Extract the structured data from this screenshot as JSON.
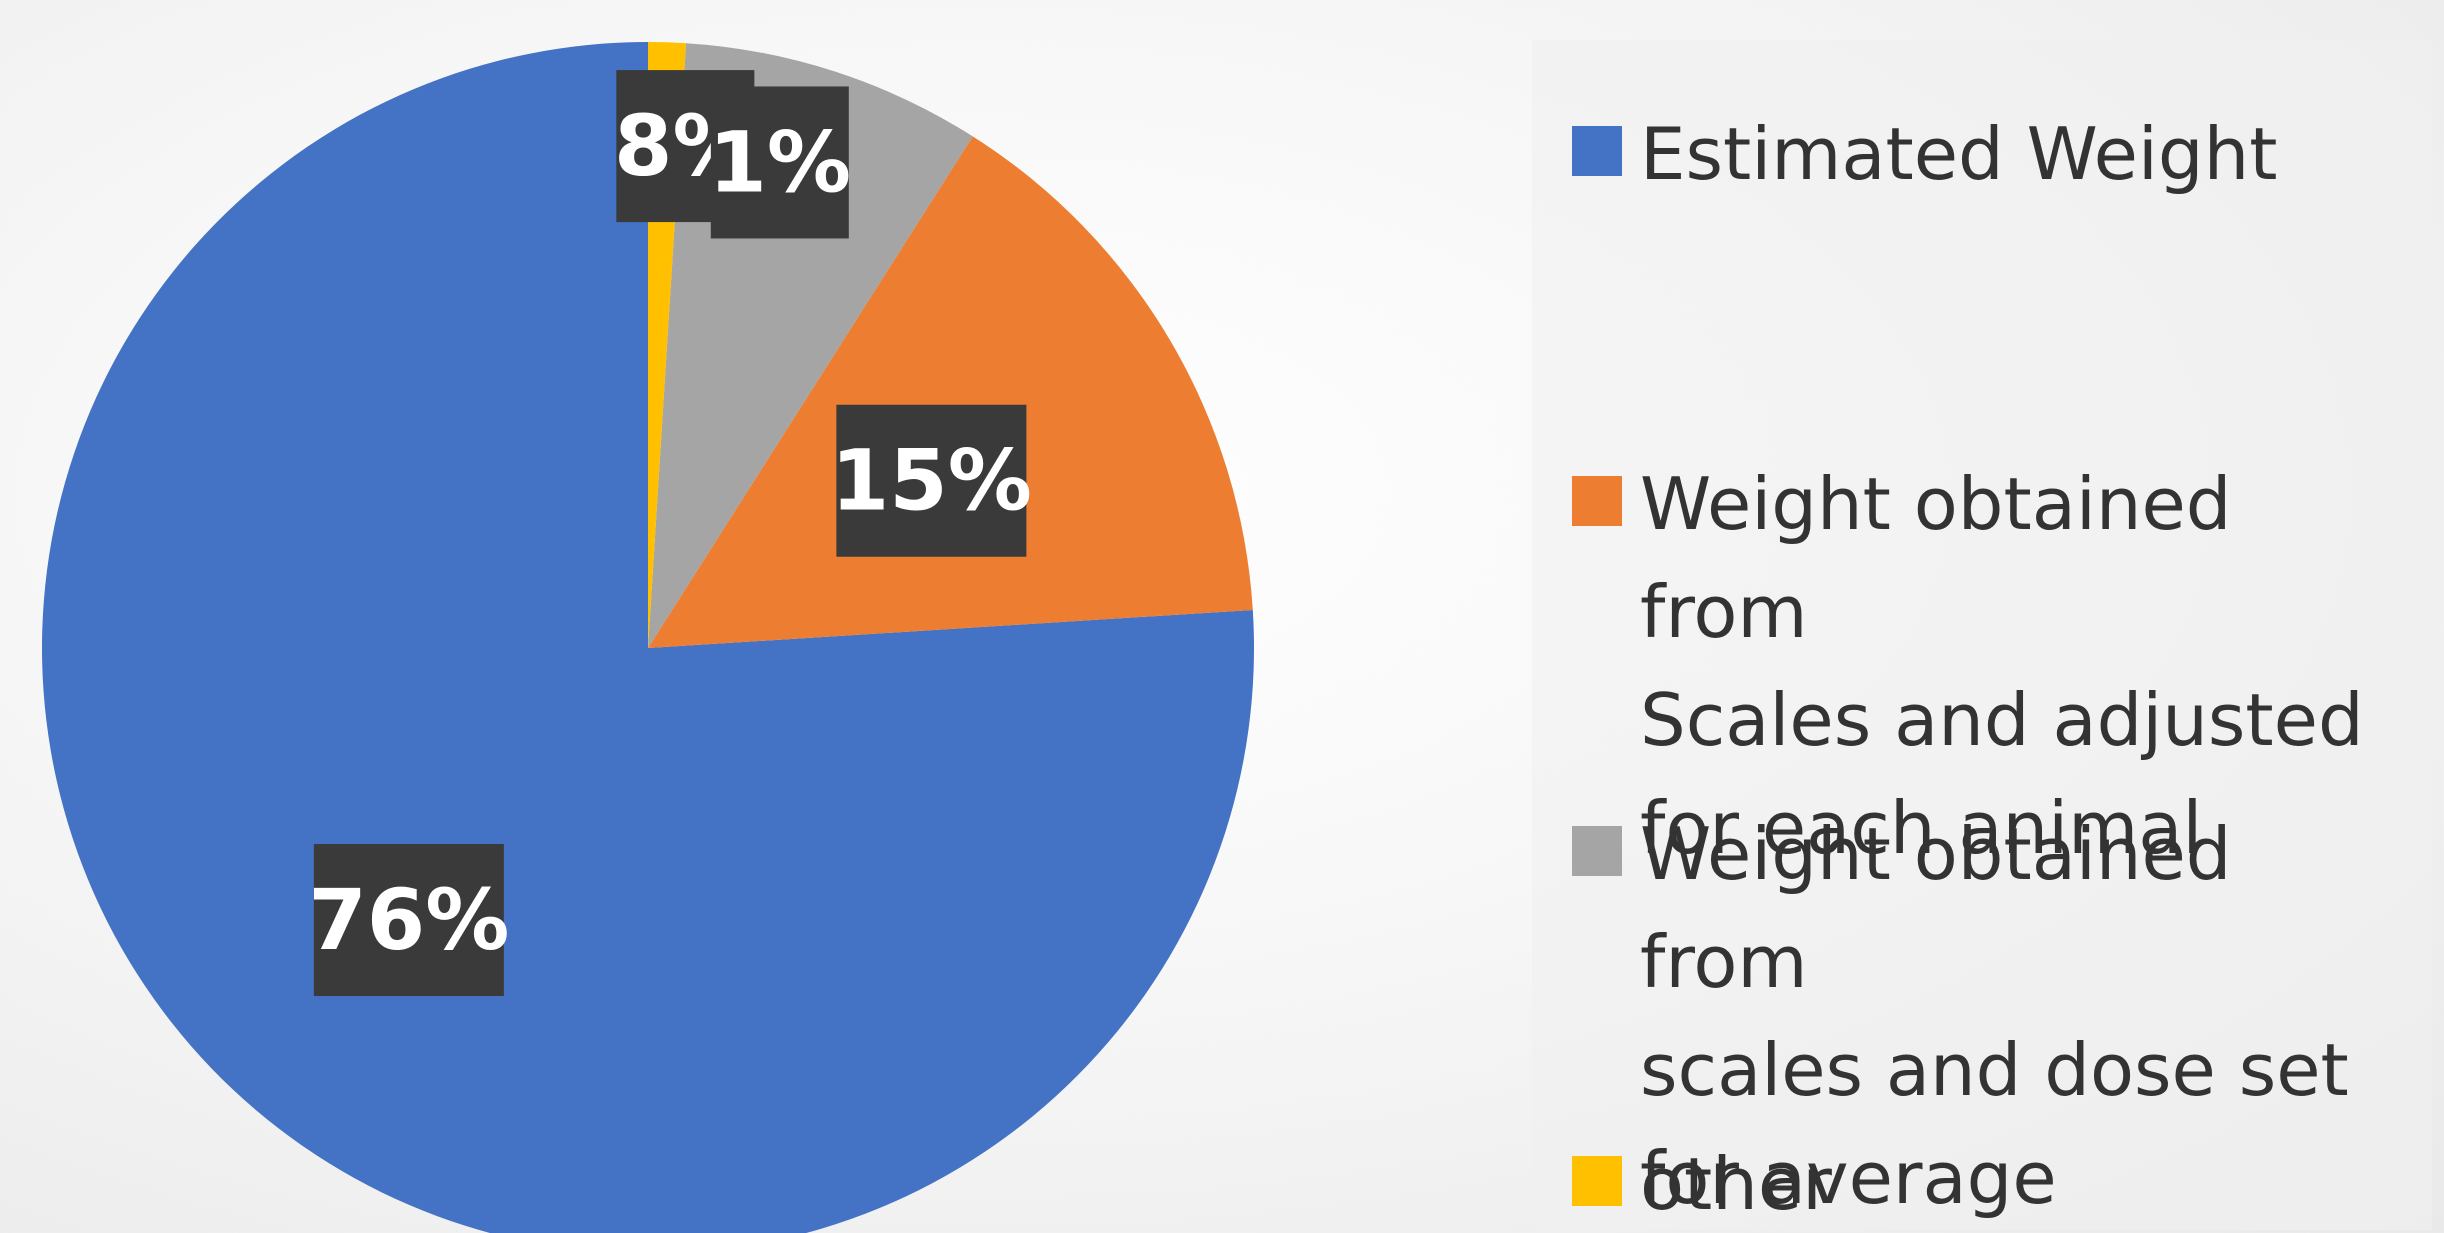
{
  "chart_data": {
    "type": "pie",
    "categories": [
      "Estimated Weight",
      "Weight obtained from Scales and adjusted for each animal",
      "Weight obtained from scales and dose set for average",
      "other"
    ],
    "values": [
      76,
      15,
      8,
      1
    ],
    "data_labels": [
      "76%",
      "15%",
      "8%",
      "1%"
    ],
    "colors": [
      "#4472C4",
      "#ED7D31",
      "#A5A5A5",
      "#FFC000"
    ],
    "legend_position": "right",
    "start_angle": "12 o'clock",
    "direction": "clockwise"
  },
  "legend": {
    "items": [
      {
        "label": "Estimated Weight",
        "color": "#4472C4"
      },
      {
        "label": "Weight obtained from\nScales and adjusted\nfor each animal",
        "color": "#ED7D31"
      },
      {
        "label": "Weight obtained from\nscales and dose set\nfor average",
        "color": "#A5A5A5"
      },
      {
        "label": "other",
        "color": "#FFC000"
      }
    ]
  }
}
